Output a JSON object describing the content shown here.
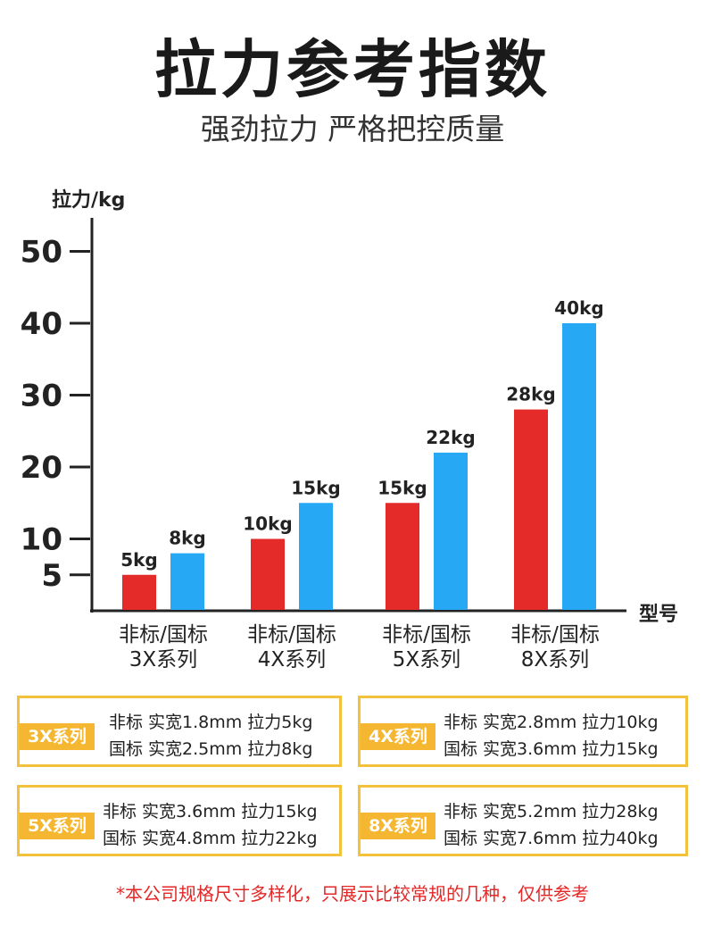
{
  "title": "拉力参考指数",
  "subtitle": "强劲拉力 严格把控质量",
  "colors": {
    "red": "#e52a2a",
    "blue": "#27a8f5",
    "badge": "#f5b731",
    "border": "#f3c23c"
  },
  "chart_data": {
    "type": "bar",
    "ylabel": "拉力/kg",
    "xlabel": "型号",
    "yticks": [
      5,
      10,
      20,
      30,
      40,
      50
    ],
    "ylim": [
      0,
      50
    ],
    "categories": [
      "非标/国标\n3X系列",
      "非标/国标\n4X系列",
      "非标/国标\n5X系列",
      "非标/国标\n8X系列"
    ],
    "category_lines": [
      [
        "非标/国标",
        "3X系列"
      ],
      [
        "非标/国标",
        "4X系列"
      ],
      [
        "非标/国标",
        "5X系列"
      ],
      [
        "非标/国标",
        "8X系列"
      ]
    ],
    "series": [
      {
        "name": "非标",
        "color": "#e52a2a",
        "values": [
          5,
          10,
          15,
          28
        ],
        "labels": [
          "5kg",
          "10kg",
          "15kg",
          "28kg"
        ]
      },
      {
        "name": "国标",
        "color": "#27a8f5",
        "values": [
          8,
          15,
          22,
          40
        ],
        "labels": [
          "8kg",
          "15kg",
          "22kg",
          "40kg"
        ]
      }
    ]
  },
  "specs": [
    {
      "badge": "3X系列",
      "lines": [
        "非标  实宽1.8mm 拉力5kg",
        "国标  实宽2.5mm 拉力8kg"
      ]
    },
    {
      "badge": "4X系列",
      "lines": [
        "非标  实宽2.8mm 拉力10kg",
        "国标  实宽3.6mm 拉力15kg"
      ]
    },
    {
      "badge": "5X系列",
      "lines": [
        "非标  实宽3.6mm 拉力15kg",
        "国标  实宽4.8mm 拉力22kg"
      ]
    },
    {
      "badge": "8X系列",
      "lines": [
        "非标  实宽5.2mm 拉力28kg",
        "国标  实宽7.6mm 拉力40kg"
      ]
    }
  ],
  "note": "*本公司规格尺寸多样化，只展示比较常规的几种，仅供参考"
}
